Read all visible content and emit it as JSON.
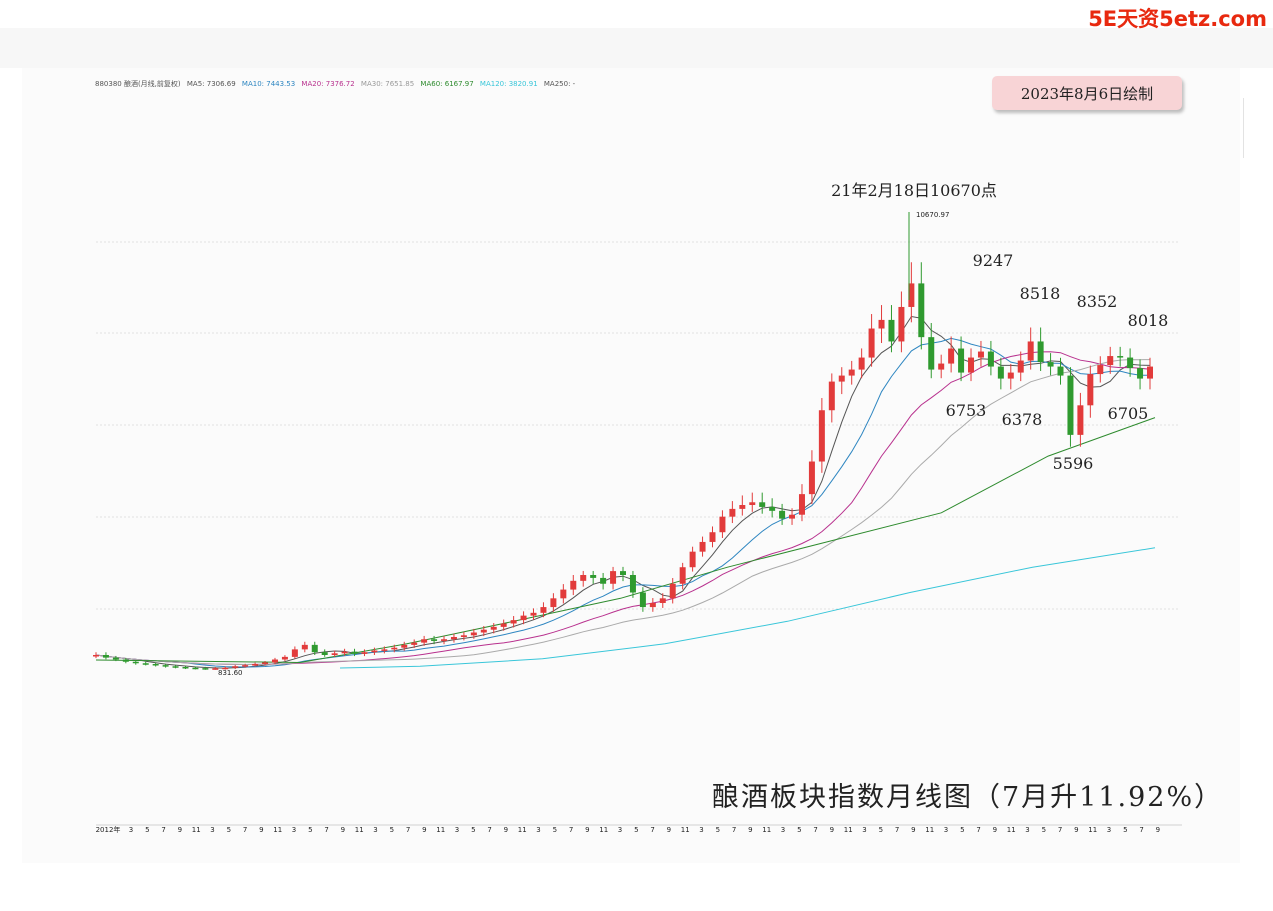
{
  "watermark": "5E天资5etz.com",
  "legend": {
    "code_name": "880380 酿酒(月线,前复权)",
    "items": [
      {
        "label": "MA5: 7306.69",
        "color": "#555555"
      },
      {
        "label": "MA10: 7443.53",
        "color": "#2e86c1"
      },
      {
        "label": "MA20: 7376.72",
        "color": "#b8318e"
      },
      {
        "label": "MA30: 7651.85",
        "color": "#999999"
      },
      {
        "label": "MA60: 6167.97",
        "color": "#2e8b2e"
      },
      {
        "label": "MA120: 3820.91",
        "color": "#39c6d9"
      },
      {
        "label": "MA250: -",
        "color": "#555555"
      }
    ]
  },
  "date_badge": "2023年8月6日绘制",
  "footer_title": "酿酒板块指数月线图（7月升11.92%）",
  "colors": {
    "up": "#e23b3b",
    "down": "#2f9a2f"
  },
  "chart_data": {
    "type": "candlestick",
    "title": "酿酒板块指数月线图（7月升11.92%）",
    "ylim": [
      0,
      12000
    ],
    "grid": true,
    "x_start_label": "2012年",
    "x_month_ticks": [
      "3",
      "5",
      "7",
      "9",
      "11"
    ],
    "peak": {
      "date": "21年2月18日",
      "value": 10670.97,
      "label": "10670.97",
      "caption": "21年2月18日10670点"
    },
    "low": {
      "label": "831.60",
      "value": 831.6
    },
    "annotations": [
      {
        "text": "9247",
        "value": 9247,
        "kind": "high"
      },
      {
        "text": "6753",
        "value": 6753,
        "kind": "low"
      },
      {
        "text": "8518",
        "value": 8518,
        "kind": "high"
      },
      {
        "text": "6378",
        "value": 6378,
        "kind": "low"
      },
      {
        "text": "8352",
        "value": 8352,
        "kind": "high"
      },
      {
        "text": "5596",
        "value": 5596,
        "kind": "low"
      },
      {
        "text": "8018",
        "value": 8018,
        "kind": "high"
      },
      {
        "text": "6705",
        "value": 6705,
        "kind": "low"
      }
    ],
    "closes": [
      1200,
      1130,
      1080,
      1020,
      980,
      960,
      930,
      900,
      880,
      860,
      850,
      840,
      845,
      860,
      900,
      930,
      960,
      1000,
      1080,
      1150,
      1300,
      1380,
      1250,
      1200,
      1230,
      1260,
      1220,
      1250,
      1280,
      1300,
      1330,
      1380,
      1420,
      1480,
      1450,
      1480,
      1520,
      1550,
      1600,
      1650,
      1700,
      1760,
      1820,
      1900,
      1950,
      2050,
      2200,
      2350,
      2500,
      2600,
      2550,
      2450,
      2700,
      2600,
      2300,
      2050,
      2120,
      2200,
      2450,
      2800,
      3200,
      3450,
      3700,
      4100,
      4300,
      4400,
      4450,
      4350,
      4250,
      4050,
      4150,
      4600,
      5200,
      6200,
      6800,
      7000,
      7200,
      7600,
      8400,
      8600,
      8100,
      8900,
      9400,
      8200,
      7200,
      7400,
      7900,
      7100,
      7600,
      7800,
      7300,
      6900,
      7100,
      7500,
      8100,
      7450,
      7300,
      7000,
      5700,
      6300,
      7050,
      7350,
      7650,
      7600,
      7250,
      6900,
      7300
    ],
    "ma60_values": [
      1000,
      1400,
      1800,
      2200,
      2800,
      3500,
      4200,
      5300,
      6050
    ],
    "ma120_values": [
      900,
      1100,
      1400,
      1800,
      2300,
      2800,
      3300
    ]
  }
}
